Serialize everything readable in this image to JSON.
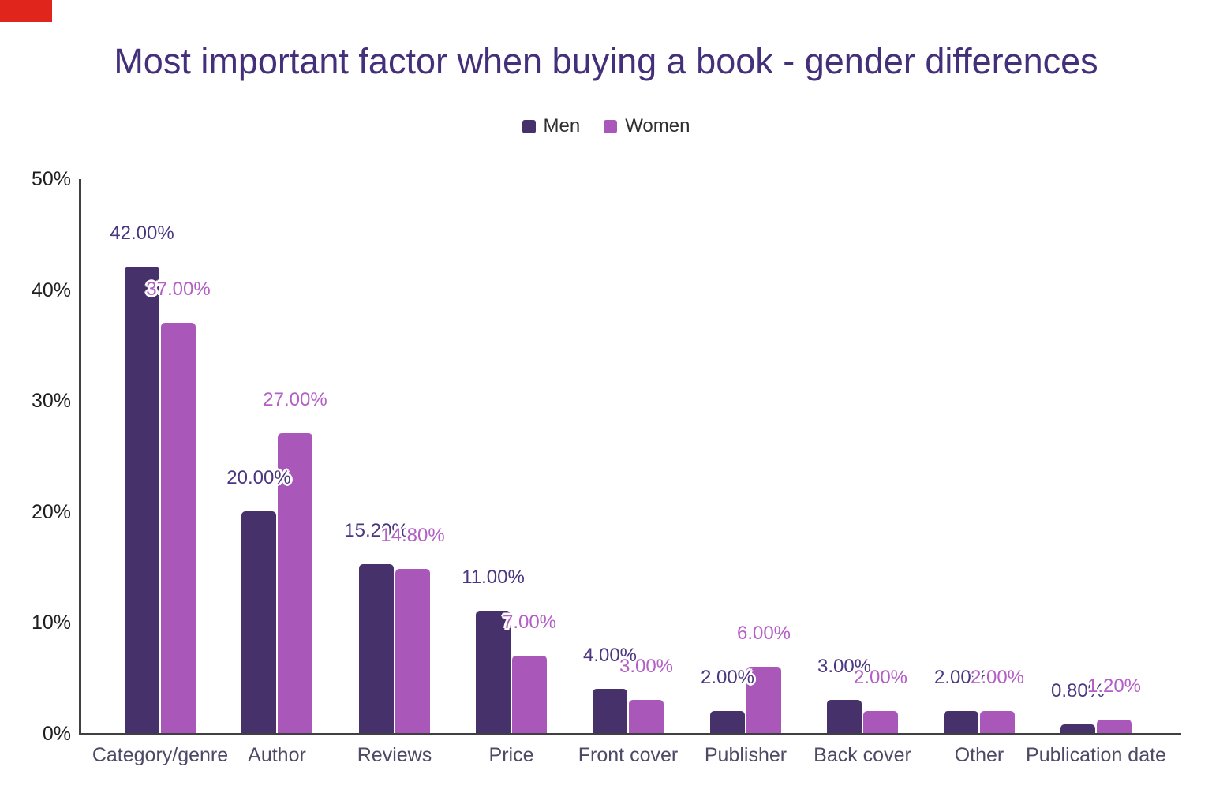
{
  "page": {
    "background": "#ffffff"
  },
  "decoration": {
    "red_marker_color": "#e0261c"
  },
  "chart_data": {
    "type": "bar",
    "title": "Most important factor when buying a book - gender differences",
    "categories": [
      "Category/genre",
      "Author",
      "Reviews",
      "Price",
      "Front cover",
      "Publisher",
      "Back cover",
      "Other",
      "Publication date"
    ],
    "series": [
      {
        "name": "Men",
        "color": "#46316b",
        "label_color": "#4a3780",
        "values": [
          42,
          20,
          15.2,
          11,
          4,
          2,
          3,
          2,
          0.8
        ],
        "labels": [
          "42.00%",
          "20.00%",
          "15.20%",
          "11.00%",
          "4.00%",
          "2.00%",
          "3.00%",
          "2.00%",
          "0.80%"
        ]
      },
      {
        "name": "Women",
        "color": "#a957b9",
        "label_color": "#b35fc6",
        "values": [
          37,
          27,
          14.8,
          7,
          3,
          6,
          2,
          2,
          1.2
        ],
        "labels": [
          "37.00%",
          "27.00%",
          "14.80%",
          "7.00%",
          "3.00%",
          "6.00%",
          "2.00%",
          "2.00%",
          "1.20%"
        ]
      }
    ],
    "y_axis": {
      "ticks": [
        "0%",
        "10%",
        "20%",
        "30%",
        "40%",
        "50%"
      ],
      "tick_values": [
        0,
        10,
        20,
        30,
        40,
        50
      ],
      "min": 0,
      "max": 50
    },
    "xlabel": "",
    "ylabel": "",
    "legend_position": "top-center",
    "grid": "off",
    "value_label_outline": "#ffffff"
  }
}
